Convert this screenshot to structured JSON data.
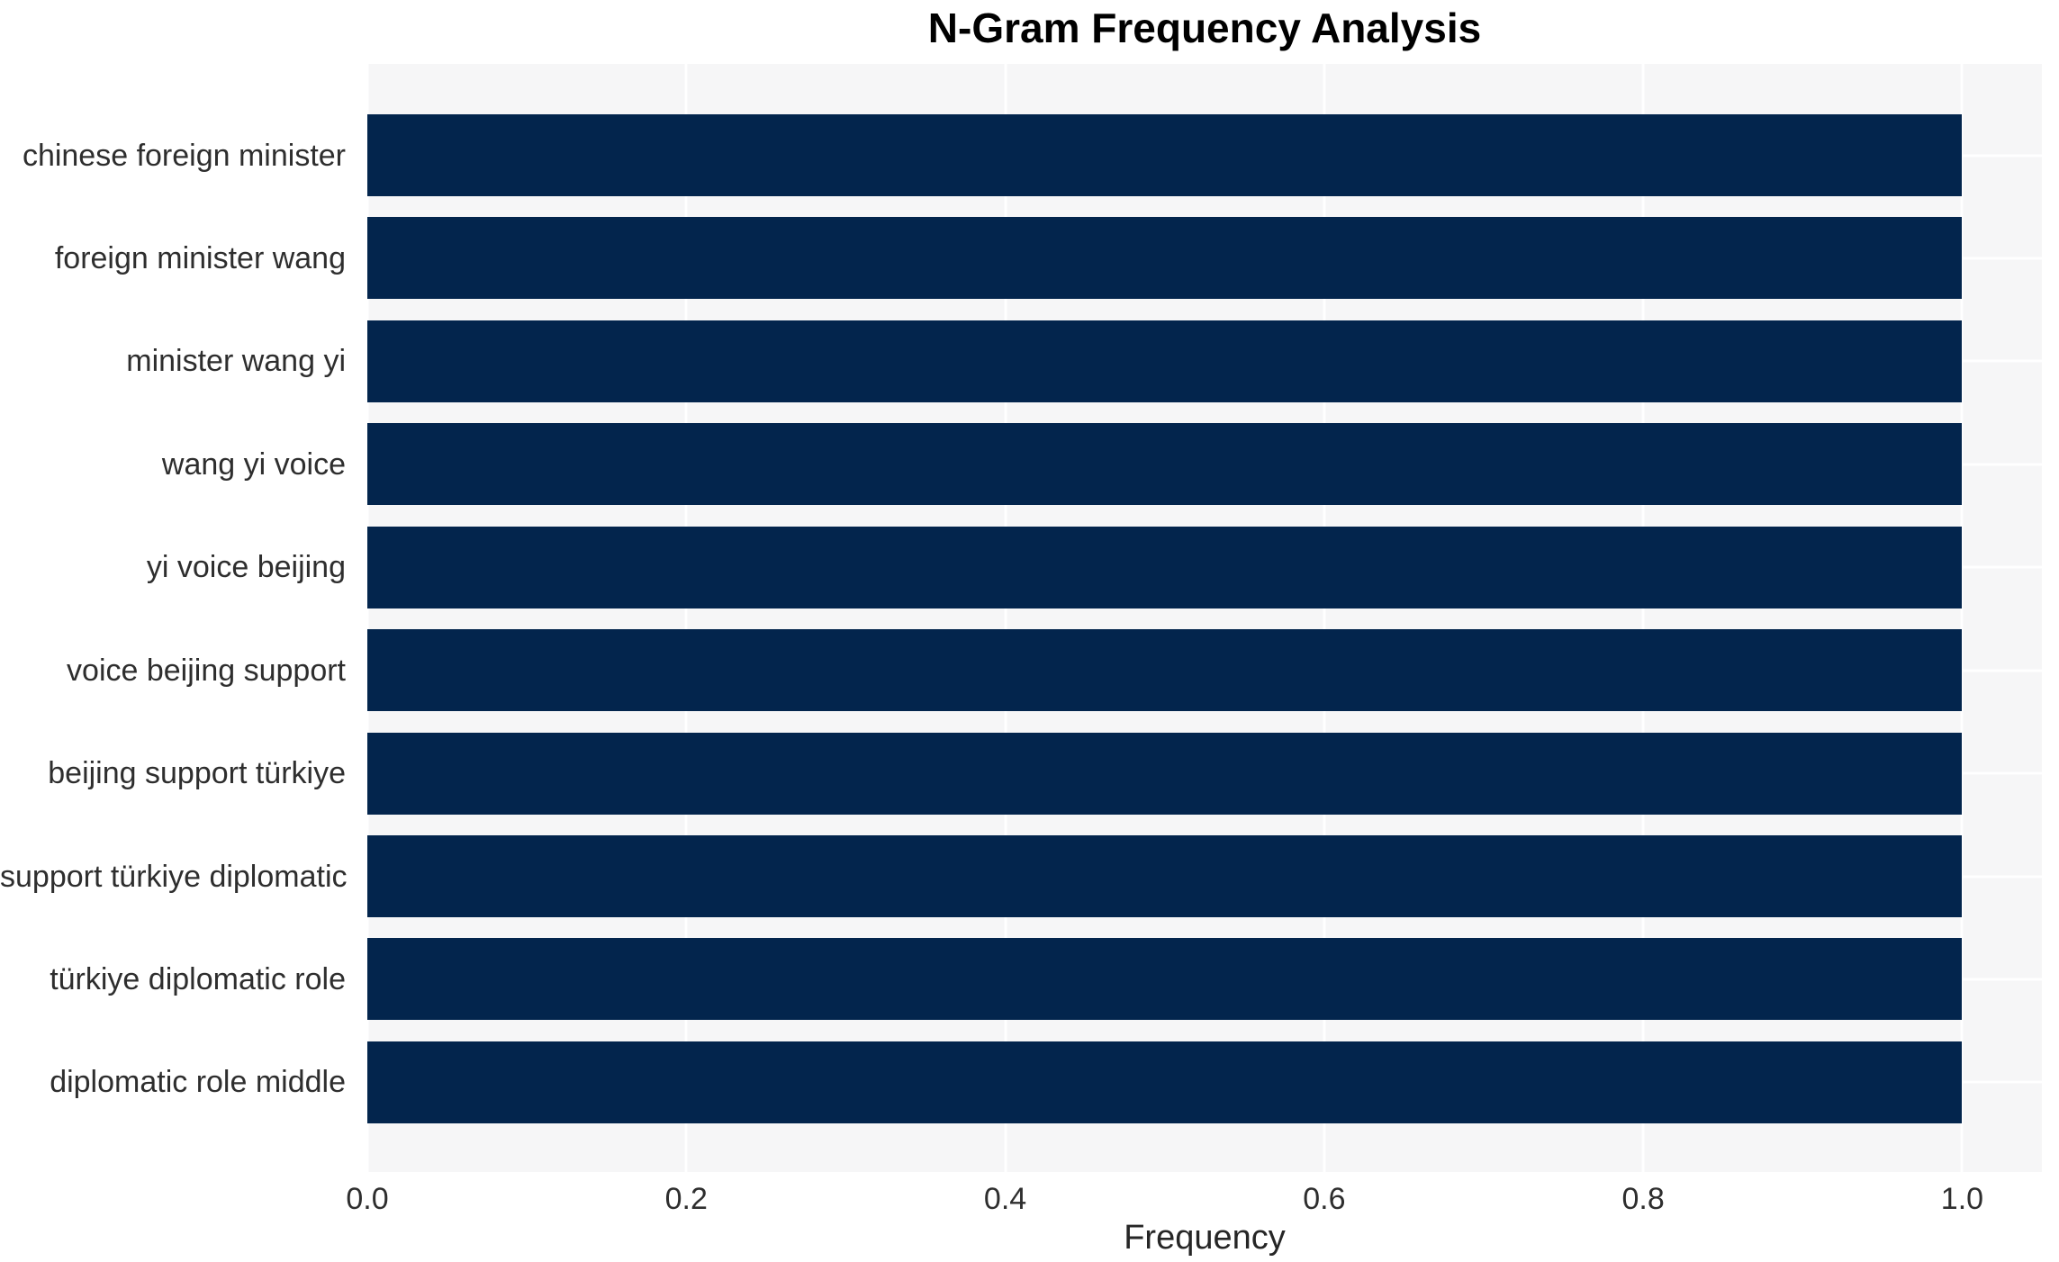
{
  "title": "N-Gram Frequency Analysis",
  "colors": {
    "bar": "#03254d",
    "plot_background": "#f6f6f7",
    "grid_line": "#ffffff",
    "text": "#2e2e2e",
    "title_text": "#000000",
    "page_background": "#ffffff"
  },
  "chart_data": {
    "type": "bar",
    "orientation": "horizontal",
    "title": "N-Gram Frequency Analysis",
    "xlabel": "Frequency",
    "ylabel": "",
    "categories": [
      "chinese foreign minister",
      "foreign minister wang",
      "minister wang yi",
      "wang yi voice",
      "yi voice beijing",
      "voice beijing support",
      "beijing support türkiye",
      "support türkiye diplomatic",
      "türkiye diplomatic role",
      "diplomatic role middle"
    ],
    "values": [
      1.0,
      1.0,
      1.0,
      1.0,
      1.0,
      1.0,
      1.0,
      1.0,
      1.0,
      1.0
    ],
    "xlim": [
      0,
      1.05
    ],
    "xticks": [
      0.0,
      0.2,
      0.4,
      0.6,
      0.8,
      1.0
    ],
    "xtick_labels": [
      "0.0",
      "0.2",
      "0.4",
      "0.6",
      "0.8",
      "1.0"
    ],
    "grid": true,
    "legend": false,
    "bar_color": "#03254d"
  }
}
